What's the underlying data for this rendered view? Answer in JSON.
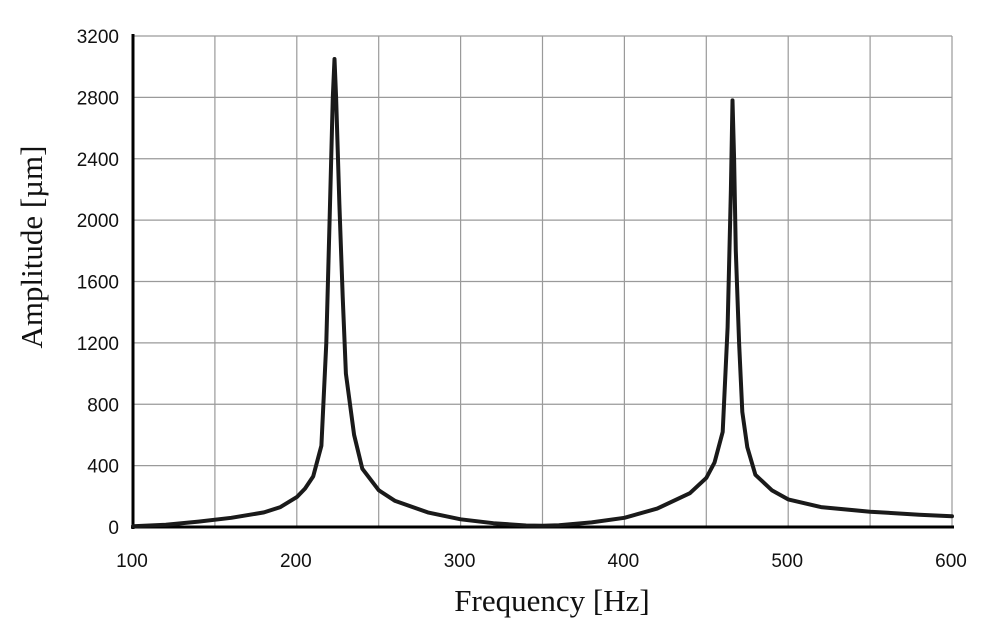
{
  "chart_data": {
    "type": "line",
    "title": "",
    "xlabel": "Frequency [Hz]",
    "ylabel": "Amplitude [µm]",
    "xlim": [
      100,
      600
    ],
    "ylim": [
      0,
      3200
    ],
    "x_ticks": [
      100,
      200,
      300,
      400,
      500,
      600
    ],
    "y_ticks": [
      0,
      400,
      800,
      1200,
      1600,
      2000,
      2400,
      2800,
      3200
    ],
    "x_tick_labels": [
      "100",
      "200",
      "300",
      "400",
      "500",
      "600"
    ],
    "y_tick_labels": [
      "0",
      "400",
      "800",
      "1200",
      "1600",
      "2000",
      "2400",
      "2800",
      "3200"
    ],
    "grid": true,
    "legend": "none",
    "colors": {
      "line": "#1a1a1a",
      "grid": "#9a9a9a",
      "axis": "#000000"
    },
    "series": [
      {
        "x": [
          100,
          120,
          140,
          160,
          180,
          190,
          200,
          205,
          210,
          215,
          218,
          220,
          222,
          223,
          224,
          226,
          228,
          230,
          235,
          240,
          250,
          260,
          280,
          300,
          320,
          340,
          350,
          360,
          380,
          400,
          420,
          440,
          450,
          455,
          460,
          463,
          465,
          466,
          467,
          468,
          470,
          472,
          475,
          480,
          490,
          500,
          520,
          550,
          580,
          600
        ],
        "y": [
          5,
          15,
          35,
          60,
          95,
          130,
          195,
          250,
          330,
          530,
          1200,
          2000,
          2800,
          3050,
          2800,
          2100,
          1500,
          1000,
          600,
          380,
          240,
          170,
          95,
          50,
          25,
          10,
          8,
          12,
          30,
          60,
          120,
          220,
          320,
          420,
          620,
          1300,
          2200,
          2780,
          2400,
          1800,
          1200,
          750,
          520,
          340,
          240,
          180,
          130,
          100,
          80,
          70
        ]
      }
    ]
  }
}
